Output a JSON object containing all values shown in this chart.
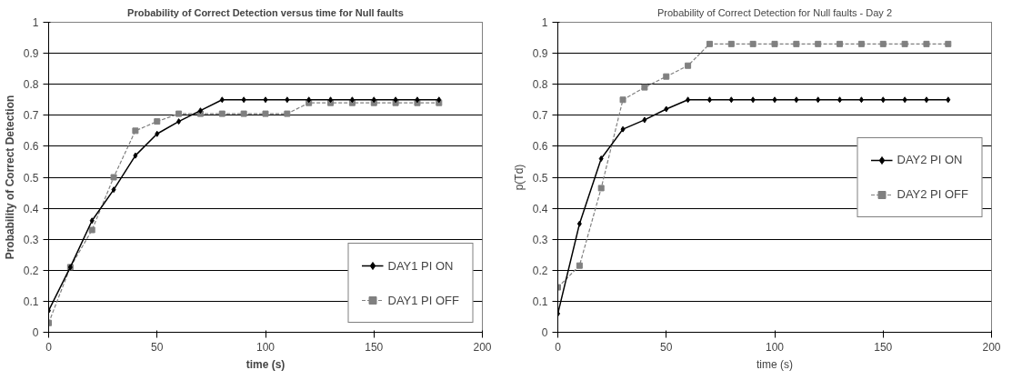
{
  "chart_data": [
    {
      "type": "line",
      "title": "Probability of Correct Detection versus time for Null faults",
      "xlabel": "time (s)",
      "ylabel": "Probability of Correct Detection",
      "x": [
        0,
        10,
        20,
        30,
        40,
        50,
        60,
        70,
        80,
        90,
        100,
        110,
        120,
        130,
        140,
        150,
        160,
        170,
        180
      ],
      "series": [
        {
          "name": "DAY1 PI ON",
          "color": "#000000",
          "marker": "diamond",
          "line_style": "solid",
          "values": [
            0.07,
            0.21,
            0.36,
            0.46,
            0.57,
            0.64,
            0.68,
            0.715,
            0.75,
            0.75,
            0.75,
            0.75,
            0.75,
            0.75,
            0.75,
            0.75,
            0.75,
            0.75,
            0.75
          ]
        },
        {
          "name": "DAY1 PI OFF",
          "color": "#808080",
          "marker": "square",
          "line_style": "dashed",
          "values": [
            0.03,
            0.21,
            0.33,
            0.5,
            0.65,
            0.68,
            0.705,
            0.705,
            0.705,
            0.705,
            0.705,
            0.705,
            0.74,
            0.74,
            0.74,
            0.74,
            0.74,
            0.74,
            0.74
          ]
        }
      ],
      "xlim": [
        0,
        200
      ],
      "xticks": [
        0,
        50,
        100,
        150,
        200
      ],
      "ylim": [
        0,
        1
      ],
      "yticks": [
        0,
        0.1,
        0.2,
        0.3,
        0.4,
        0.5,
        0.6,
        0.7,
        0.8,
        0.9,
        1
      ],
      "grid": "y",
      "legend": "bottom right"
    },
    {
      "type": "line",
      "title": "Probability of Correct Detection for Null faults - Day 2",
      "xlabel": "time (s)",
      "ylabel": "p(Td)",
      "x": [
        0,
        10,
        20,
        30,
        40,
        50,
        60,
        70,
        80,
        90,
        100,
        110,
        120,
        130,
        140,
        150,
        160,
        170,
        180
      ],
      "series": [
        {
          "name": "DAY2 PI ON",
          "color": "#000000",
          "marker": "diamond",
          "line_style": "solid",
          "values": [
            0.06,
            0.35,
            0.56,
            0.655,
            0.685,
            0.72,
            0.75,
            0.75,
            0.75,
            0.75,
            0.75,
            0.75,
            0.75,
            0.75,
            0.75,
            0.75,
            0.75,
            0.75,
            0.75
          ]
        },
        {
          "name": "DAY2 PI OFF",
          "color": "#808080",
          "marker": "square",
          "line_style": "dashed",
          "values": [
            0.145,
            0.215,
            0.465,
            0.75,
            0.79,
            0.825,
            0.86,
            0.93,
            0.93,
            0.93,
            0.93,
            0.93,
            0.93,
            0.93,
            0.93,
            0.93,
            0.93,
            0.93,
            0.93
          ]
        }
      ],
      "xlim": [
        0,
        200
      ],
      "xticks": [
        0,
        50,
        100,
        150,
        200
      ],
      "ylim": [
        0,
        1
      ],
      "yticks": [
        0,
        0.1,
        0.2,
        0.3,
        0.4,
        0.5,
        0.6,
        0.7,
        0.8,
        0.9,
        1
      ],
      "grid": "y",
      "legend": "center right"
    }
  ]
}
